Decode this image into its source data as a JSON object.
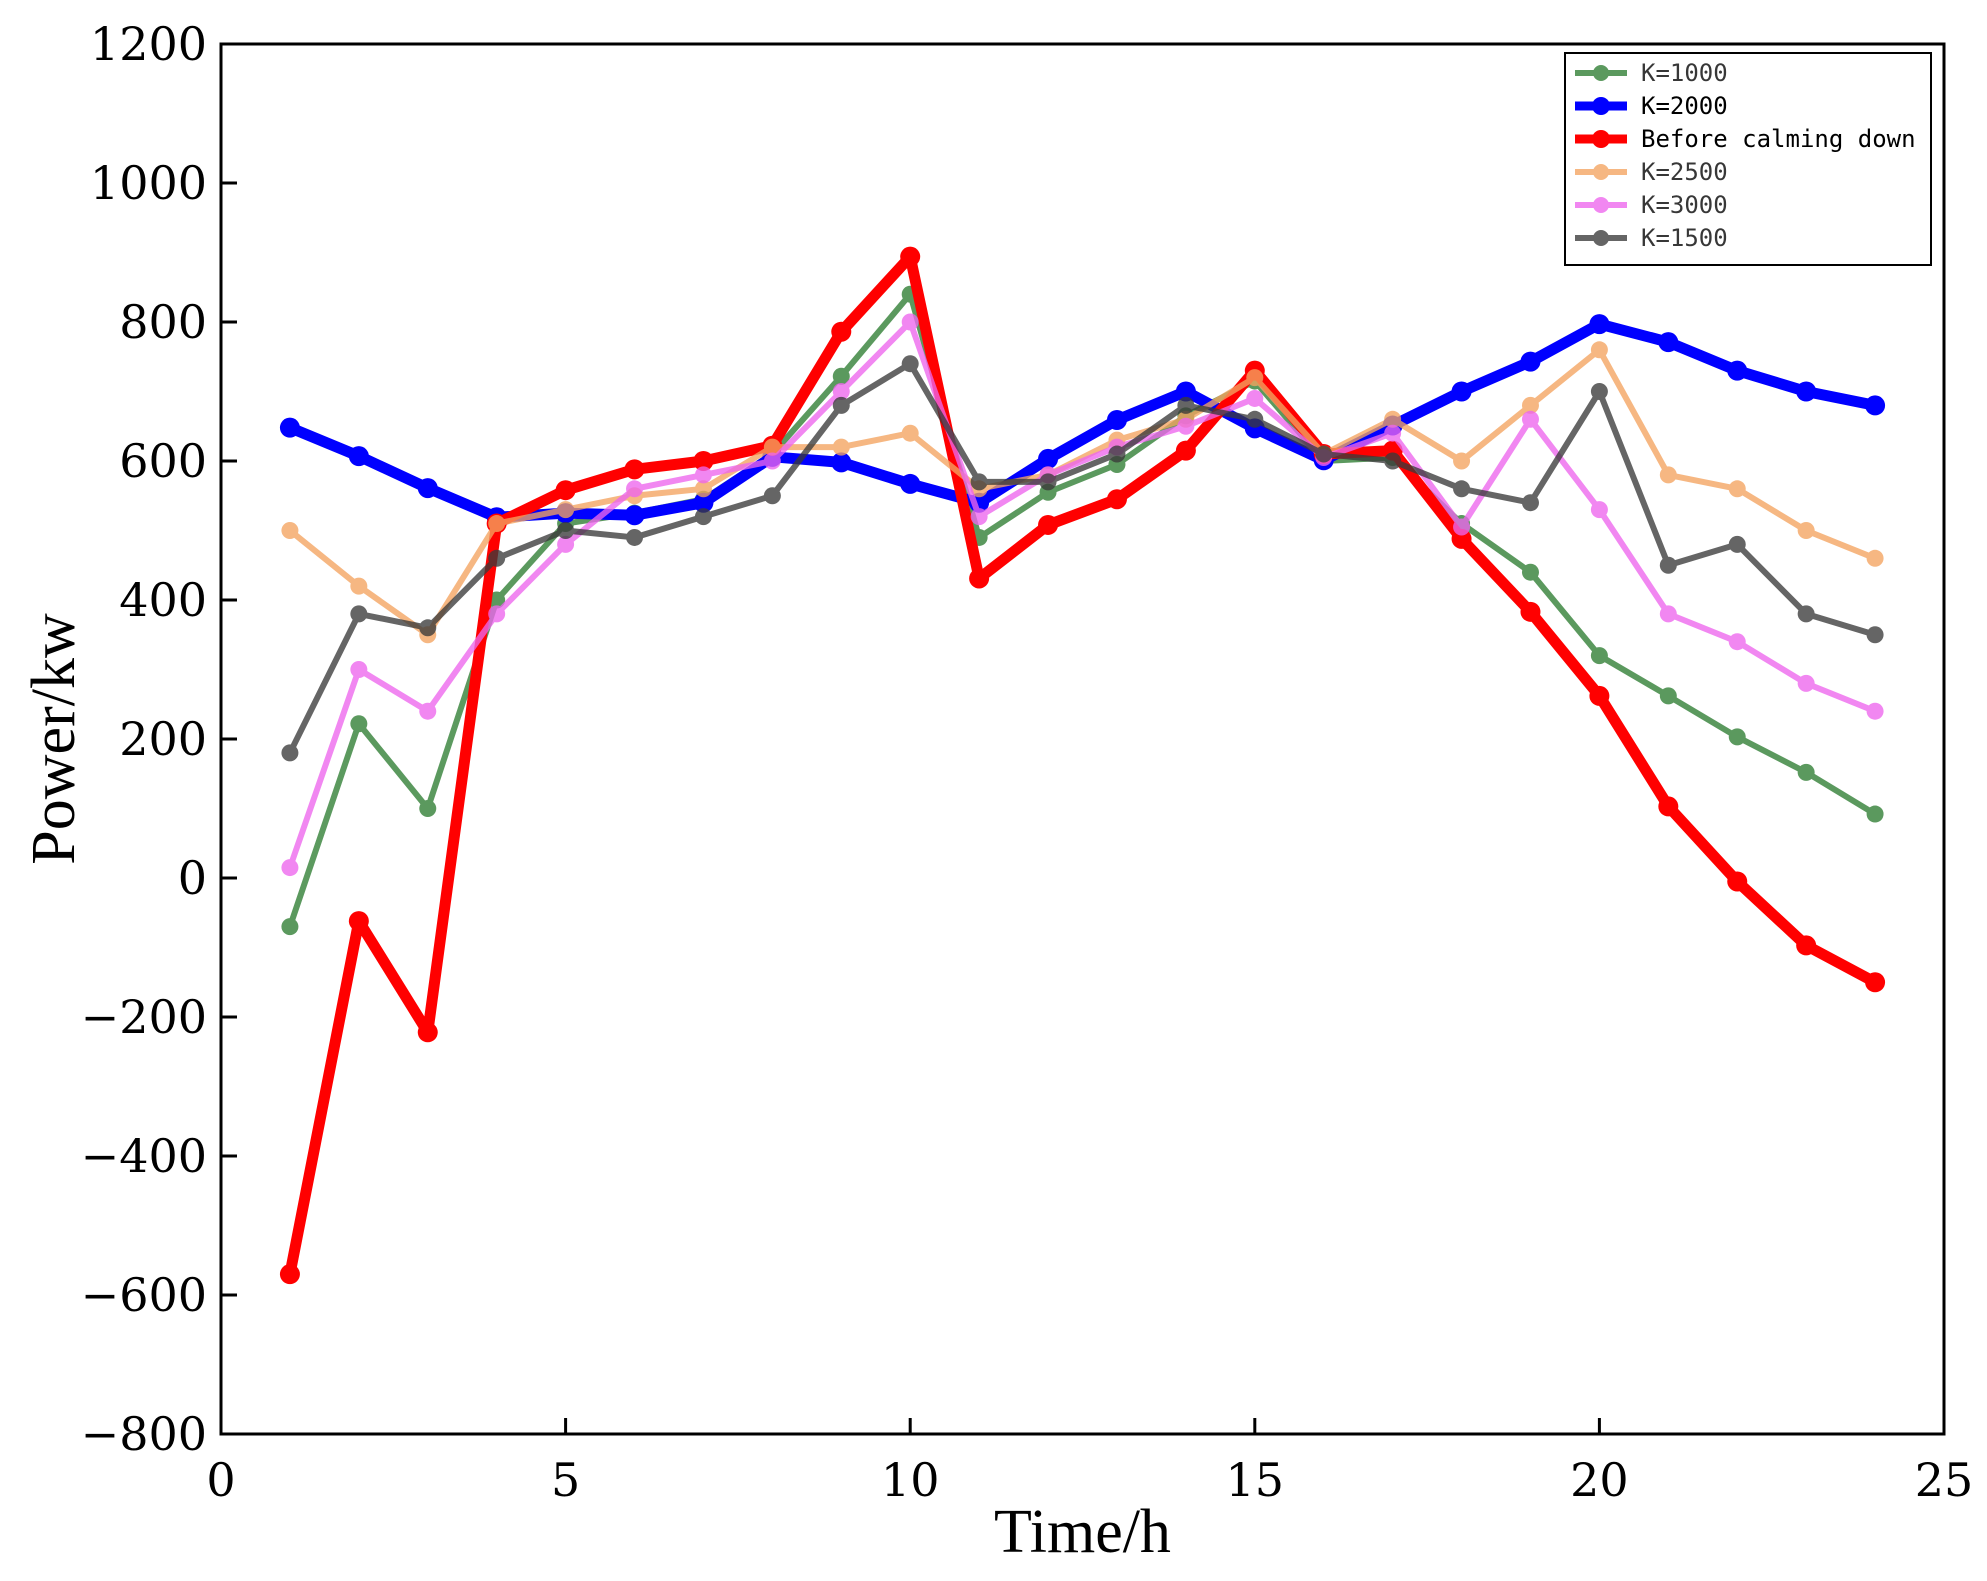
{
  "chart_data": {
    "type": "line",
    "title": "",
    "xlabel": "Time/h",
    "ylabel": "Power/kw",
    "xlim": [
      0,
      25
    ],
    "ylim": [
      -800,
      1200
    ],
    "xticks": [
      0,
      5,
      10,
      15,
      20,
      25
    ],
    "yticks": [
      -800,
      -600,
      -400,
      -200,
      0,
      200,
      400,
      600,
      800,
      1000,
      1200
    ],
    "x": [
      1,
      2,
      3,
      4,
      5,
      6,
      7,
      8,
      9,
      10,
      11,
      12,
      13,
      14,
      15,
      16,
      17,
      18,
      19,
      20,
      21,
      22,
      23,
      24
    ],
    "legend_position": "top-right",
    "series": [
      {
        "name": "K=1000",
        "color": "#2e7d32",
        "width": "thin",
        "values": [
          -70,
          222,
          100,
          400,
          510,
          525,
          545,
          610,
          722,
          840,
          490,
          555,
          595,
          665,
          715,
          600,
          605,
          510,
          440,
          320,
          262,
          203,
          152,
          92
        ]
      },
      {
        "name": "K=2000",
        "color": "#0000ff",
        "width": "thick",
        "values": [
          648,
          607,
          561,
          519,
          525,
          522,
          540,
          606,
          598,
          567,
          540,
          603,
          659,
          700,
          647,
          601,
          651,
          700,
          743,
          797,
          771,
          730,
          700,
          680
        ]
      },
      {
        "name": "Before calming down",
        "color": "#ff0000",
        "width": "thick",
        "values": [
          -570,
          -62,
          -222,
          510,
          558,
          588,
          600,
          622,
          786,
          894,
          431,
          508,
          545,
          615,
          730,
          610,
          615,
          488,
          383,
          262,
          103,
          -5,
          -97,
          -150
        ]
      },
      {
        "name": "K=2500",
        "color": "#f4a460",
        "width": "thin",
        "values": [
          500,
          420,
          350,
          510,
          530,
          550,
          560,
          620,
          620,
          640,
          560,
          580,
          630,
          660,
          720,
          610,
          660,
          600,
          680,
          760,
          580,
          560,
          500,
          460
        ]
      },
      {
        "name": "K=3000",
        "color": "#ee66ee",
        "width": "thin",
        "values": [
          15,
          300,
          240,
          380,
          480,
          560,
          580,
          600,
          700,
          800,
          520,
          580,
          620,
          650,
          690,
          605,
          640,
          505,
          660,
          530,
          380,
          340,
          280,
          240
        ]
      },
      {
        "name": "K=1500",
        "color": "#3a3a3a",
        "width": "thin",
        "values": [
          180,
          380,
          360,
          460,
          500,
          490,
          520,
          550,
          680,
          740,
          570,
          570,
          610,
          680,
          660,
          610,
          600,
          560,
          540,
          700,
          450,
          480,
          380,
          350
        ]
      }
    ]
  }
}
